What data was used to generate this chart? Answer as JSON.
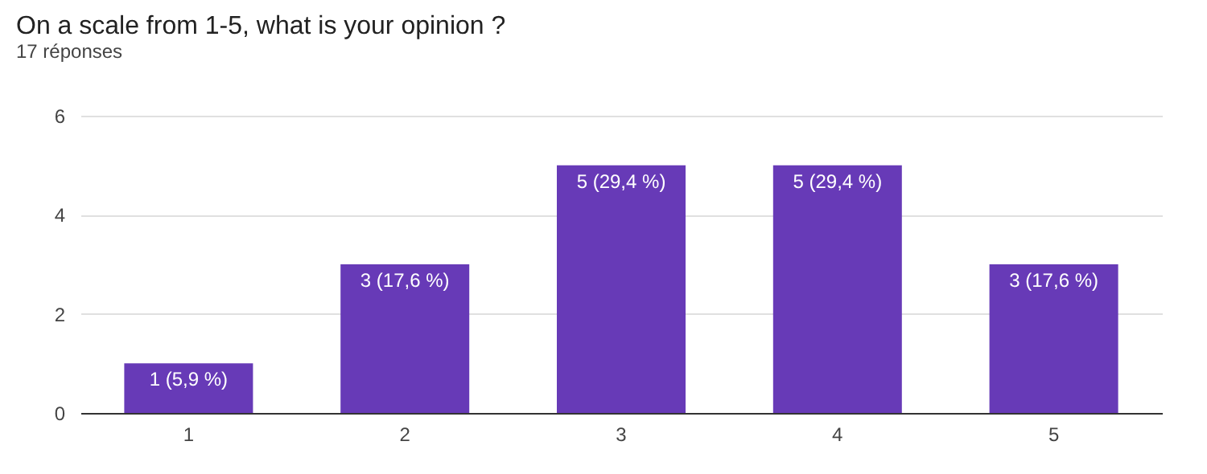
{
  "chart_data": {
    "type": "bar",
    "title": "On a scale from 1-5, what is your opinion ?",
    "subtitle": "17 réponses",
    "categories": [
      "1",
      "2",
      "3",
      "4",
      "5"
    ],
    "values": [
      1,
      3,
      5,
      5,
      3
    ],
    "color": "#673ab7",
    "value_labels": [
      "1 (5,9 %)",
      "3 (17,6 %)",
      "5 (29,4 %)",
      "5 (29,4 %)",
      "3 (17,6 %)"
    ],
    "ylim": [
      0,
      6
    ],
    "yticks": [
      0,
      2,
      4,
      6
    ],
    "grid": "y"
  }
}
